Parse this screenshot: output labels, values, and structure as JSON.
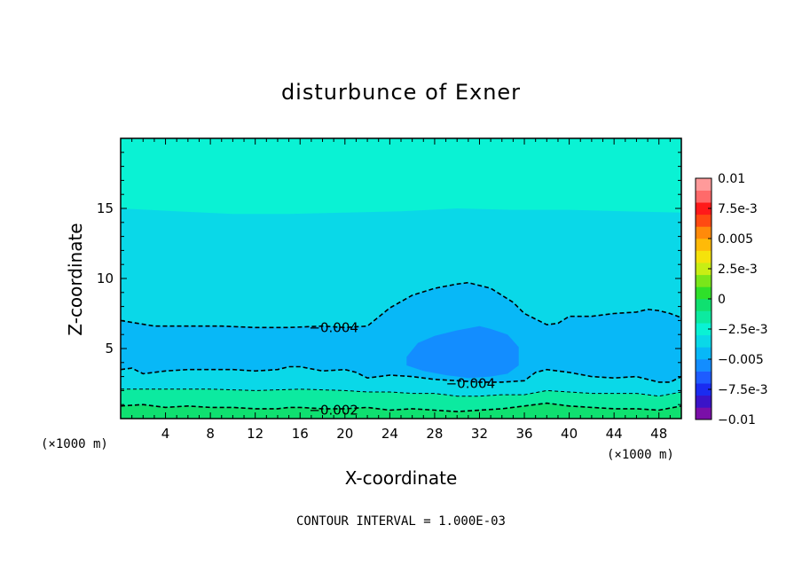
{
  "chart_data": {
    "type": "contour",
    "title": "disturbunce of Exner",
    "xlabel": "X-coordinate",
    "ylabel": "Z-coordinate",
    "x_unit": "(×1000 m)",
    "x_unit_right": "(×1000 m)",
    "xlim": [
      0,
      50
    ],
    "ylim": [
      0,
      20
    ],
    "x_ticks": [
      4,
      8,
      12,
      16,
      20,
      24,
      28,
      32,
      36,
      40,
      44,
      48
    ],
    "y_ticks": [
      5,
      10,
      15
    ],
    "footer": "CONTOUR INTERVAL = 1.000E-03",
    "contour_interval": 0.001,
    "colorbar": {
      "min": -0.01,
      "max": 0.01,
      "labels": [
        {
          "value": 0.01,
          "text": "0.01"
        },
        {
          "value": 0.0075,
          "text": "7.5e-3"
        },
        {
          "value": 0.005,
          "text": "0.005"
        },
        {
          "value": 0.0025,
          "text": "2.5e-3"
        },
        {
          "value": 0,
          "text": "0"
        },
        {
          "value": -0.0025,
          "text": "−2.5e-3"
        },
        {
          "value": -0.005,
          "text": "−0.005"
        },
        {
          "value": -0.0075,
          "text": "−7.5e-3"
        },
        {
          "value": -0.01,
          "text": "−0.01"
        }
      ],
      "colors": [
        "#7a0fa8",
        "#3a14c8",
        "#1a2cf0",
        "#1e5cff",
        "#138dff",
        "#08b8f7",
        "#0ad8e8",
        "#0af2d4",
        "#0ceaa0",
        "#0fe070",
        "#2fe02a",
        "#7ae61a",
        "#c8ee14",
        "#f5e20c",
        "#ffba08",
        "#ff8a0a",
        "#ff4a12",
        "#ff1a1a",
        "#ff6a6a",
        "#ff9a9a"
      ]
    },
    "contour_labels": [
      {
        "text": "−0.004",
        "x": 19.0,
        "z": 6.5
      },
      {
        "text": "−0.004",
        "x": 31.2,
        "z": 2.5
      },
      {
        "text": "−0.002",
        "x": 19.0,
        "z": 0.6
      }
    ],
    "contours": [
      {
        "level": -0.004,
        "x": [
          0,
          3,
          6,
          9,
          12,
          15,
          18,
          20,
          22,
          24,
          26,
          28,
          30,
          31,
          33,
          35,
          36,
          37,
          38,
          39,
          40,
          42,
          44,
          46,
          47,
          48,
          49,
          50
        ],
        "z": [
          7.0,
          6.6,
          6.6,
          6.6,
          6.5,
          6.5,
          6.6,
          6.5,
          6.6,
          7.9,
          8.8,
          9.3,
          9.6,
          9.7,
          9.3,
          8.3,
          7.5,
          7.1,
          6.7,
          6.8,
          7.3,
          7.3,
          7.5,
          7.6,
          7.8,
          7.7,
          7.5,
          7.2
        ]
      },
      {
        "level": -0.004,
        "x": [
          0,
          1,
          2,
          4,
          6,
          8,
          10,
          12,
          14,
          15,
          16,
          18,
          20,
          21,
          22,
          24,
          26,
          28,
          30,
          32,
          34,
          36,
          37,
          38,
          40,
          42,
          44,
          46,
          48,
          49,
          50
        ],
        "z": [
          3.5,
          3.6,
          3.2,
          3.4,
          3.5,
          3.5,
          3.5,
          3.4,
          3.5,
          3.7,
          3.7,
          3.4,
          3.5,
          3.3,
          2.9,
          3.1,
          3.0,
          2.8,
          2.7,
          2.6,
          2.6,
          2.7,
          3.3,
          3.5,
          3.3,
          3.0,
          2.9,
          3.0,
          2.6,
          2.6,
          3.0
        ]
      },
      {
        "level": -0.003,
        "x": [
          0,
          4,
          8,
          12,
          16,
          20,
          22,
          24,
          26,
          28,
          30,
          32,
          34,
          36,
          38,
          40,
          42,
          44,
          46,
          48,
          50
        ],
        "z": [
          2.1,
          2.1,
          2.1,
          2.0,
          2.1,
          2.0,
          1.9,
          1.9,
          1.8,
          1.8,
          1.6,
          1.6,
          1.7,
          1.7,
          2.0,
          1.9,
          1.8,
          1.8,
          1.8,
          1.6,
          1.9
        ]
      },
      {
        "level": -0.002,
        "x": [
          0,
          2,
          4,
          6,
          8,
          10,
          12,
          14,
          15,
          16,
          18,
          20,
          22,
          24,
          26,
          28,
          30,
          32,
          34,
          36,
          38,
          40,
          42,
          44,
          46,
          48,
          50
        ],
        "z": [
          0.9,
          1.0,
          0.8,
          0.9,
          0.8,
          0.8,
          0.7,
          0.7,
          0.8,
          0.8,
          0.7,
          0.7,
          0.8,
          0.6,
          0.7,
          0.6,
          0.5,
          0.6,
          0.7,
          0.9,
          1.1,
          0.9,
          0.8,
          0.7,
          0.7,
          0.6,
          0.9
        ]
      }
    ],
    "regions": [
      {
        "level_range": [
          -0.003,
          -0.002
        ],
        "color": "#0af2d4"
      },
      {
        "level_range": [
          -0.004,
          -0.003
        ],
        "color": "#0ad8e8"
      },
      {
        "level_range": [
          -0.005,
          -0.004
        ],
        "color": "#08b8f7"
      },
      {
        "level_range": [
          -0.006,
          -0.005
        ],
        "color": "#138dff"
      },
      {
        "level_range": [
          -0.002,
          -0.001
        ],
        "color": "#0ceaa0"
      },
      {
        "level_range": [
          -0.001,
          0
        ],
        "color": "#0fe070"
      }
    ],
    "core": {
      "x": [
        25.5,
        26.5,
        28,
        30,
        32,
        33,
        34.5,
        35.5,
        35.5,
        34.5,
        33,
        31,
        29,
        27,
        25.5,
        25.5
      ],
      "z": [
        4.4,
        5.4,
        5.9,
        6.3,
        6.6,
        6.4,
        6.0,
        5.1,
        3.8,
        3.2,
        3.0,
        2.9,
        3.1,
        3.4,
        3.8,
        4.4
      ]
    },
    "upper_boundary": {
      "x": [
        0,
        5,
        10,
        15,
        20,
        25,
        30,
        35,
        40,
        45,
        50
      ],
      "z": [
        15.0,
        14.8,
        14.6,
        14.6,
        14.7,
        14.8,
        15.0,
        14.9,
        14.9,
        14.8,
        14.7
      ]
    }
  }
}
